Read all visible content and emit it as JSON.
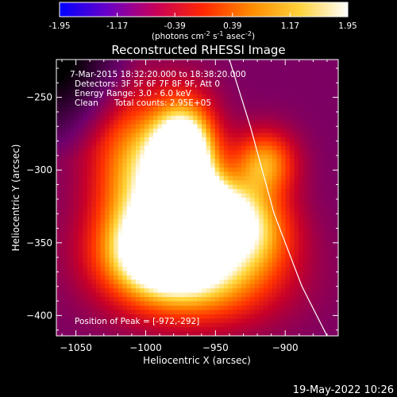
{
  "chart_data": {
    "type": "heatmap",
    "title": "Reconstructed RHESSI Image",
    "xlabel": "Heliocentric X (arcsec)",
    "ylabel": "Heliocentric Y (arcsec)",
    "xlim": [
      -1064,
      -862
    ],
    "ylim": [
      -414,
      -224
    ],
    "x_ticks": [
      -1050,
      -1000,
      -950,
      -900
    ],
    "y_ticks": [
      -250,
      -300,
      -350,
      -400
    ],
    "colorbar": {
      "range": [
        -1.95,
        1.95
      ],
      "tick_values": [
        -1.95,
        -1.17,
        -0.39,
        0.39,
        1.17,
        1.95
      ],
      "tick_labels": [
        "-1.95",
        "-1.17",
        "-0.39",
        "0.39",
        "1.17",
        "1.95"
      ],
      "label_parts": [
        "(photons cm",
        "-2",
        " s",
        "-1",
        " asec",
        "-2",
        ")"
      ],
      "colors": [
        "#0000ff",
        "#6a00c8",
        "#c8005a",
        "#ff2800",
        "#ff8c00",
        "#ffd23c",
        "#ffffff"
      ]
    },
    "annotations": {
      "time_range": "7-Mar-2015 18:32:20.000 to 18:38:20.000",
      "detectors": "Detectors: 3F 5F 6F 7F 8F 9F, Att 0",
      "energy_range": "Energy Range: 3.0 - 6.0 keV",
      "method": "Clean",
      "total_counts": "Total counts: 2.95E+05",
      "peak": "Position of Peak = [-972,-292]"
    },
    "peak": {
      "x": -972,
      "y": -292
    },
    "limb_curve": [
      {
        "x": -940,
        "y": -224
      },
      {
        "x": -925,
        "y": -270
      },
      {
        "x": -908,
        "y": -330
      },
      {
        "x": -888,
        "y": -380
      },
      {
        "x": -870,
        "y": -414
      }
    ],
    "sources": [
      {
        "x": -972,
        "y": -292,
        "amp": 1.0,
        "sx": 16,
        "sy": 26
      },
      {
        "x": -958,
        "y": -328,
        "amp": 0.8,
        "sx": 22,
        "sy": 16
      },
      {
        "x": -990,
        "y": -355,
        "amp": 0.7,
        "sx": 30,
        "sy": 22
      },
      {
        "x": -960,
        "y": -372,
        "amp": 0.55,
        "sx": 40,
        "sy": 24
      },
      {
        "x": -1005,
        "y": -300,
        "amp": 0.55,
        "sx": 24,
        "sy": 34
      },
      {
        "x": -915,
        "y": -295,
        "amp": 0.5,
        "sx": 16,
        "sy": 16
      },
      {
        "x": -920,
        "y": -340,
        "amp": 0.4,
        "sx": 20,
        "sy": 20
      }
    ],
    "background_level": 0.28
  },
  "footer": {
    "timestamp": "19-May-2022 10:26"
  }
}
